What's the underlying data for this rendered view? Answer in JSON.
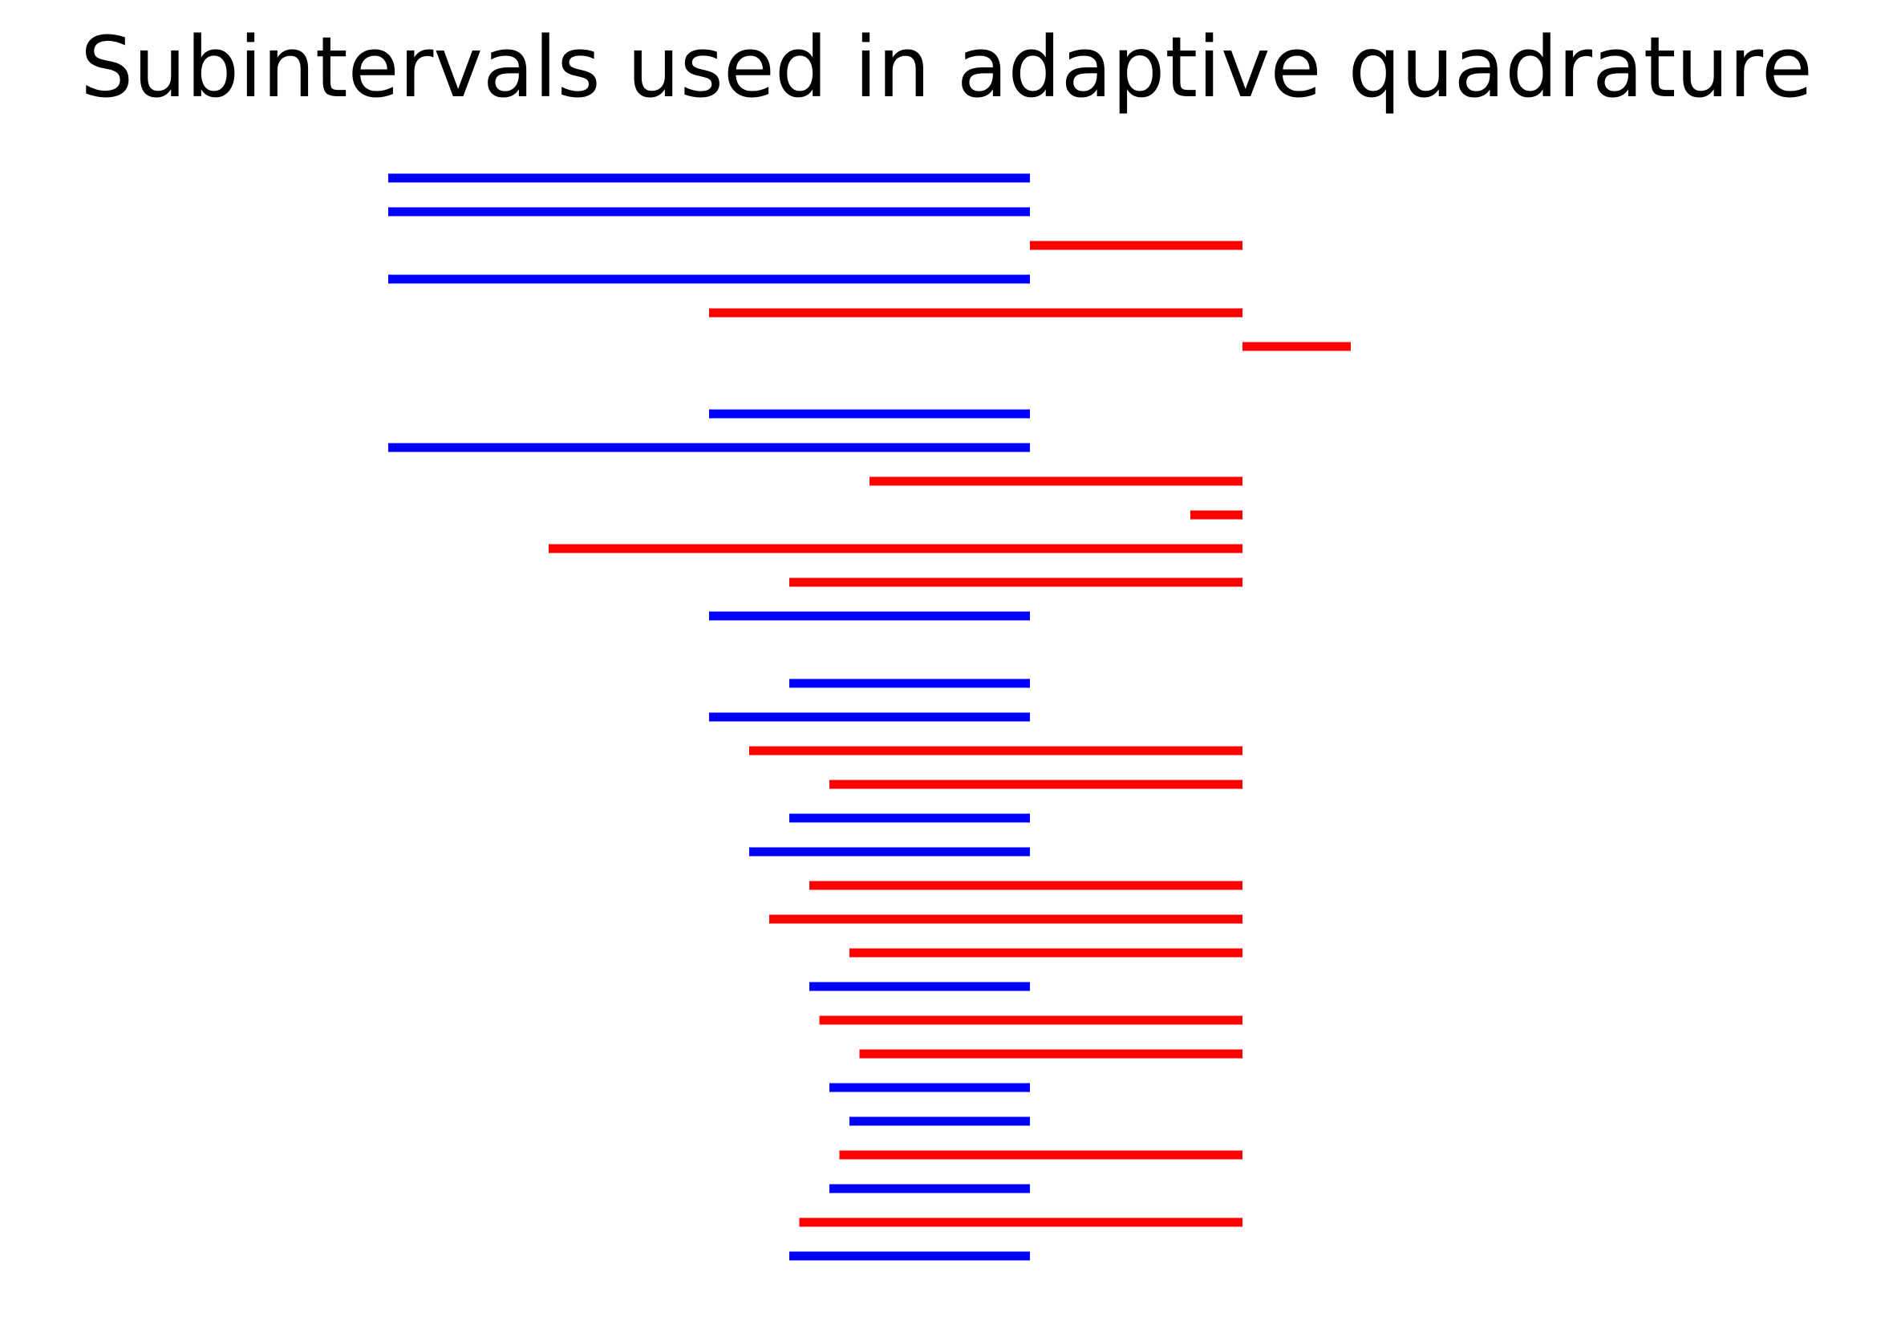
{
  "chart_data": {
    "type": "interval",
    "title": "Subintervals used in adaptive quadrature",
    "xlabel": "",
    "ylabel": "",
    "axes_visible": false,
    "grid": false,
    "xlim": [
      -0.55,
      1.0
    ],
    "row_order": "top-to-bottom",
    "colors": {
      "blue": "#0000ff",
      "red": "#ff0000"
    },
    "intervals": [
      {
        "row": 0,
        "start": -0.4,
        "end": 0.4,
        "color": "blue"
      },
      {
        "row": 1,
        "start": -0.4,
        "end": 0.4,
        "color": "blue"
      },
      {
        "row": 2,
        "start": 0.4,
        "end": 0.665,
        "color": "red"
      },
      {
        "row": 3,
        "start": -0.4,
        "end": 0.4,
        "color": "blue"
      },
      {
        "row": 4,
        "start": 0.0,
        "end": 0.665,
        "color": "red"
      },
      {
        "row": 5,
        "start": 0.665,
        "end": 0.8,
        "color": "red"
      },
      {
        "row": 7,
        "start": 0.0,
        "end": 0.4,
        "color": "blue"
      },
      {
        "row": 8,
        "start": -0.4,
        "end": 0.4,
        "color": "blue"
      },
      {
        "row": 9,
        "start": 0.2,
        "end": 0.665,
        "color": "red"
      },
      {
        "row": 10,
        "start": 0.6,
        "end": 0.665,
        "color": "red"
      },
      {
        "row": 11,
        "start": -0.2,
        "end": 0.665,
        "color": "red"
      },
      {
        "row": 12,
        "start": 0.1,
        "end": 0.665,
        "color": "red"
      },
      {
        "row": 13,
        "start": 0.0,
        "end": 0.4,
        "color": "blue"
      },
      {
        "row": 15,
        "start": 0.1,
        "end": 0.4,
        "color": "blue"
      },
      {
        "row": 16,
        "start": 0.0,
        "end": 0.4,
        "color": "blue"
      },
      {
        "row": 17,
        "start": 0.05,
        "end": 0.665,
        "color": "red"
      },
      {
        "row": 18,
        "start": 0.15,
        "end": 0.665,
        "color": "red"
      },
      {
        "row": 19,
        "start": 0.1,
        "end": 0.4,
        "color": "blue"
      },
      {
        "row": 20,
        "start": 0.05,
        "end": 0.4,
        "color": "blue"
      },
      {
        "row": 21,
        "start": 0.125,
        "end": 0.665,
        "color": "red"
      },
      {
        "row": 22,
        "start": 0.075,
        "end": 0.665,
        "color": "red"
      },
      {
        "row": 23,
        "start": 0.175,
        "end": 0.665,
        "color": "red"
      },
      {
        "row": 24,
        "start": 0.125,
        "end": 0.4,
        "color": "blue"
      },
      {
        "row": 25,
        "start": 0.1375,
        "end": 0.665,
        "color": "red"
      },
      {
        "row": 26,
        "start": 0.1875,
        "end": 0.665,
        "color": "red"
      },
      {
        "row": 27,
        "start": 0.15,
        "end": 0.4,
        "color": "blue"
      },
      {
        "row": 28,
        "start": 0.175,
        "end": 0.4,
        "color": "blue"
      },
      {
        "row": 29,
        "start": 0.1625,
        "end": 0.665,
        "color": "red"
      },
      {
        "row": 30,
        "start": 0.15,
        "end": 0.4,
        "color": "blue"
      },
      {
        "row": 31,
        "start": 0.1125,
        "end": 0.665,
        "color": "red"
      },
      {
        "row": 32,
        "start": 0.1,
        "end": 0.4,
        "color": "blue"
      }
    ]
  }
}
